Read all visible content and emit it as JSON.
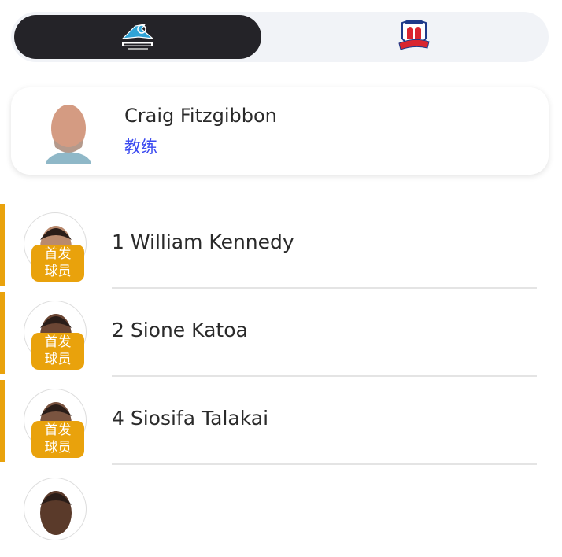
{
  "team_toggle": {
    "teams": [
      {
        "icon": "sharks-logo",
        "logo_text": "SHARKS",
        "selected": true
      },
      {
        "icon": "roosters-logo",
        "logo_text": "SYDNEY Roosters",
        "selected": false
      }
    ]
  },
  "coach": {
    "name": "Craig Fitzgibbon",
    "role": "教练"
  },
  "players": [
    {
      "label": "1 William Kennedy",
      "badge": "首发\n球员",
      "skin": "#b98a6e"
    },
    {
      "label": "2 Sione Katoa",
      "badge": "首发\n球员",
      "skin": "#6b4634"
    },
    {
      "label": "4 Siosifa Talakai",
      "badge": "首发\n球员",
      "skin": "#7a5440"
    },
    {
      "label": "",
      "badge": "",
      "skin": "#5a3a2a"
    }
  ],
  "colors": {
    "accent": "#e9a20c",
    "role": "#3a49f0",
    "selected_tab": "#242328"
  }
}
